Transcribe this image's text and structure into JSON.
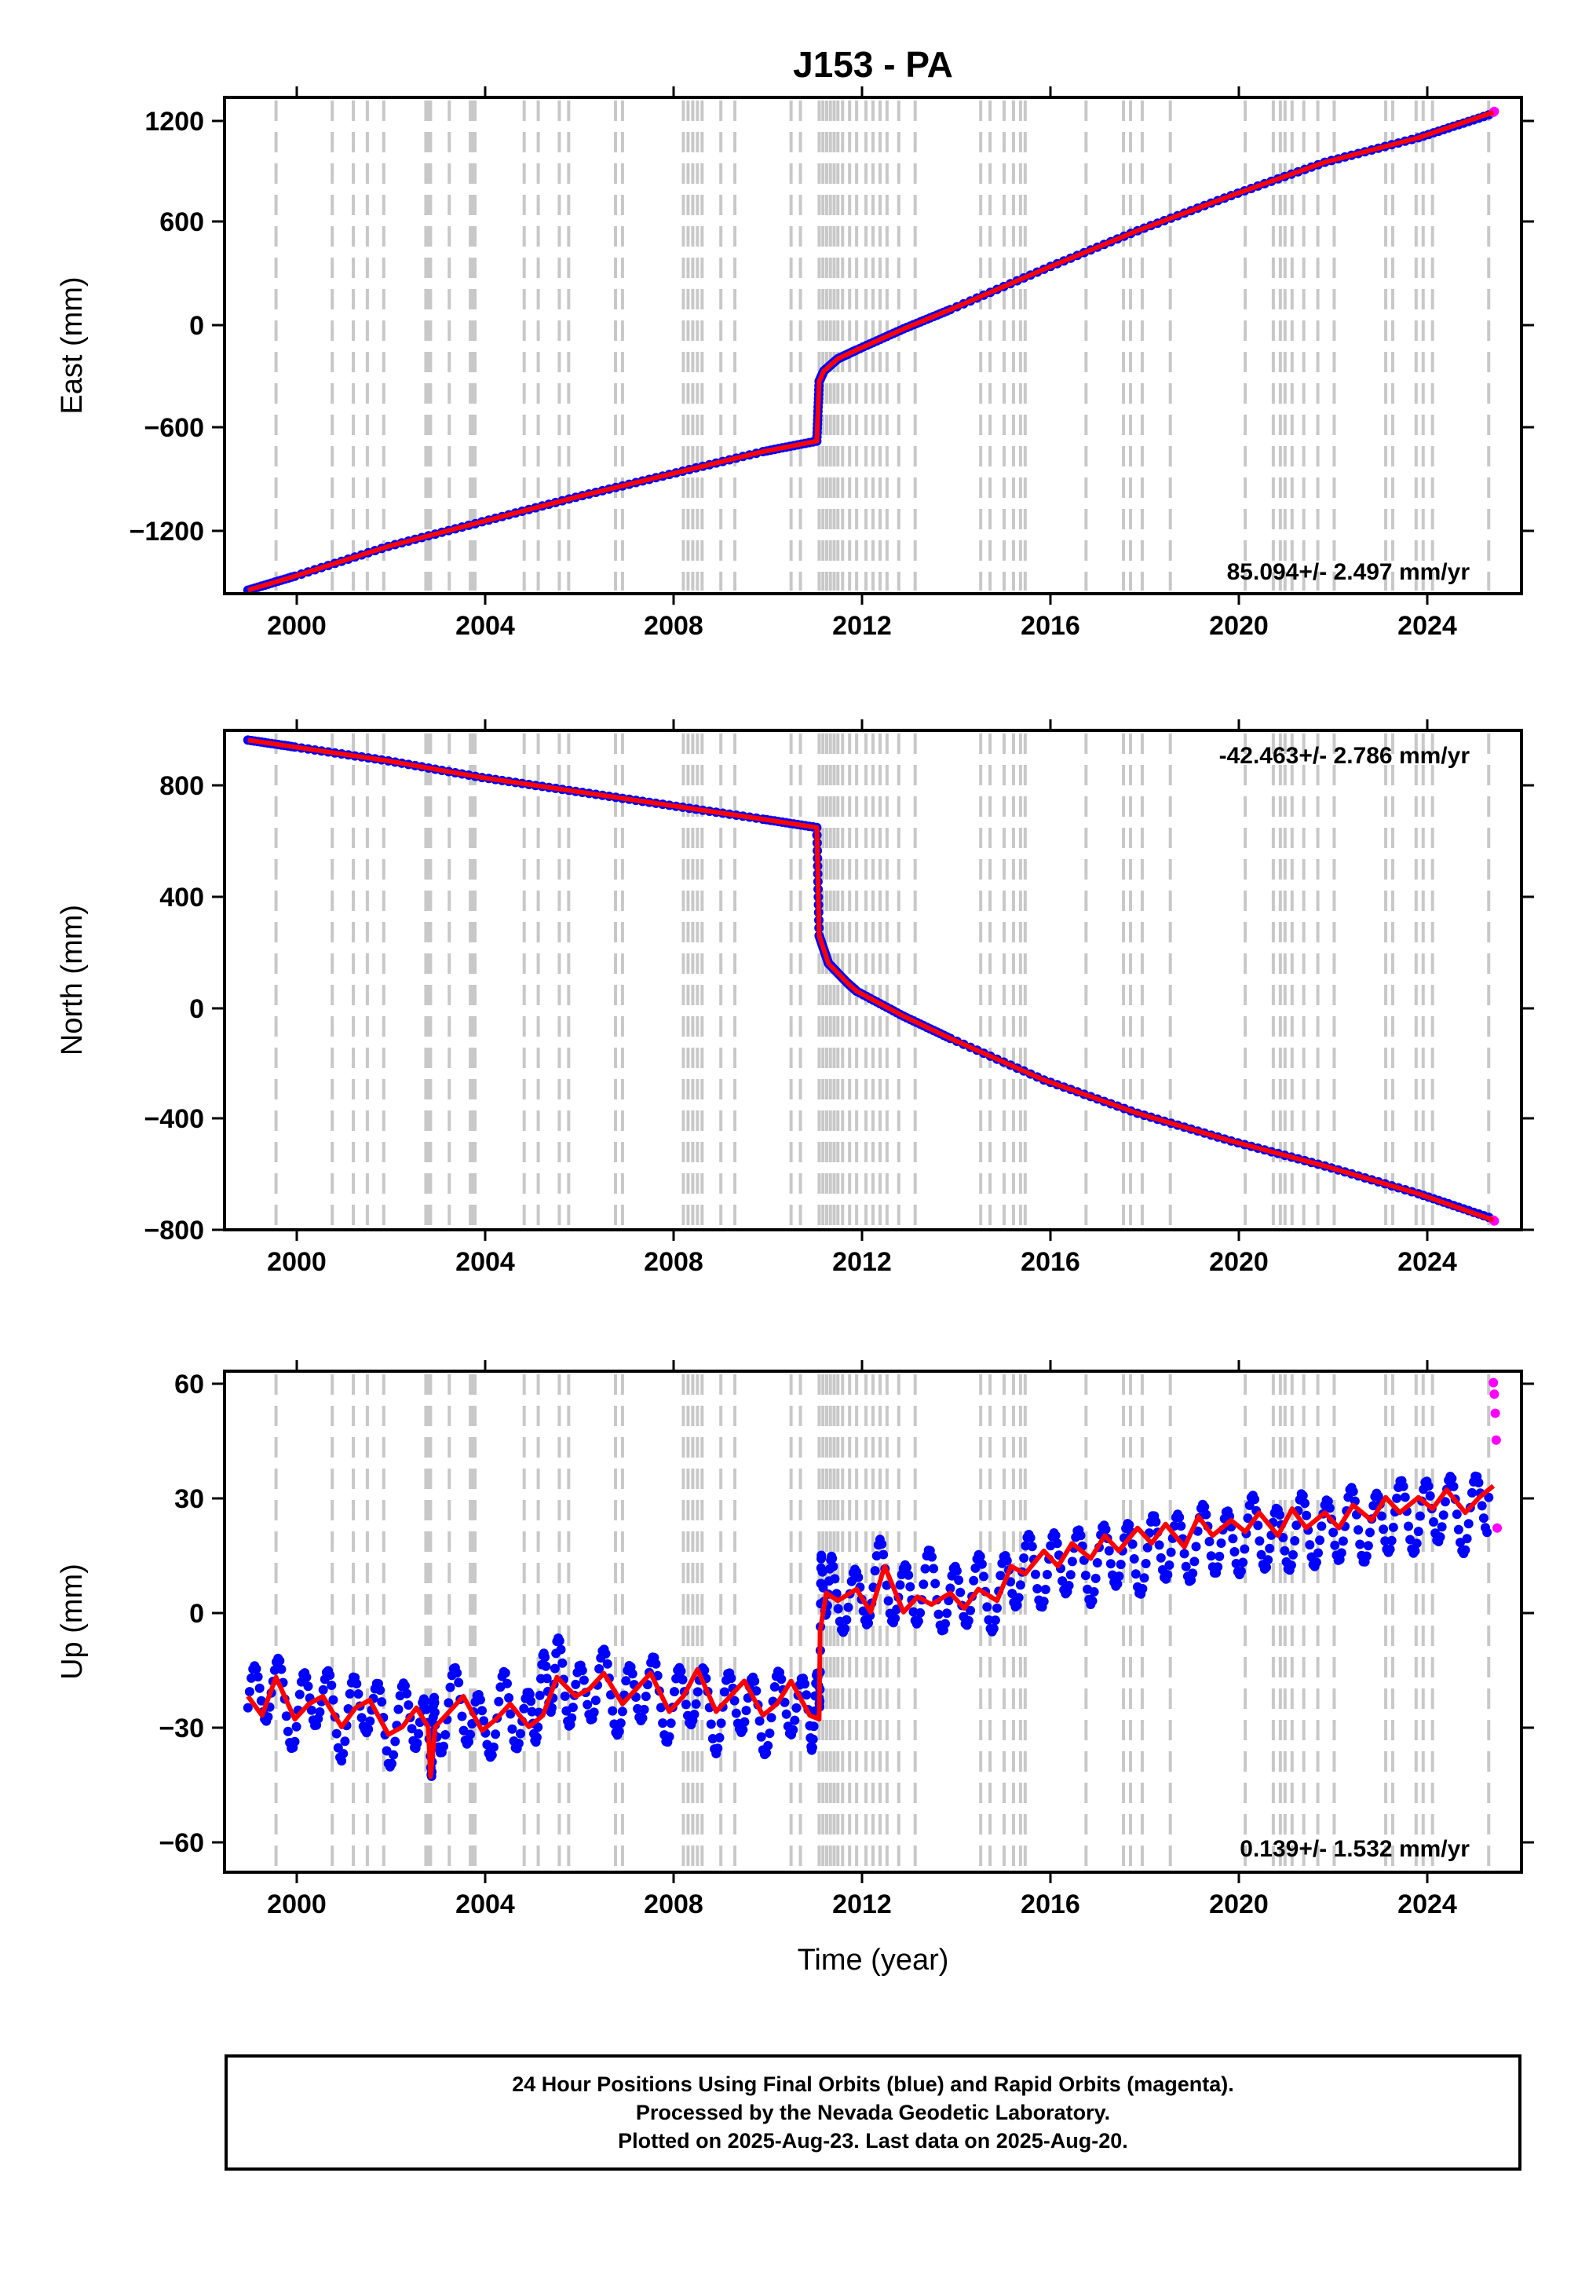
{
  "title": "J153 - PA",
  "colors": {
    "final_orbits": "#0000ff",
    "rapid_orbits": "#ff00ff",
    "model_fit": "#ff0000",
    "event_lines": "#c8c8c8",
    "axes": "#000000"
  },
  "xaxis": {
    "label": "Time (year)",
    "range": [
      1998.5,
      2026.2
    ],
    "ticks": [
      "2000",
      "2004",
      "2008",
      "2012",
      "2016",
      "2020",
      "2024"
    ]
  },
  "event_lines_years": [
    1999.6,
    2000.8,
    2001.25,
    2001.55,
    2001.9,
    2002.8,
    2002.85,
    2002.9,
    2003.3,
    2003.75,
    2003.8,
    2003.85,
    2004.9,
    2005.2,
    2005.65,
    2005.85,
    2006.85,
    2007.0,
    2008.3,
    2008.4,
    2008.5,
    2008.6,
    2008.7,
    2009.1,
    2009.4,
    2010.6,
    2010.8,
    2011.2,
    2011.28,
    2011.36,
    2011.44,
    2011.52,
    2011.6,
    2011.7,
    2011.85,
    2012.0,
    2012.2,
    2012.35,
    2012.5,
    2012.65,
    2012.9,
    2013.25,
    2014.65,
    2014.85,
    2015.15,
    2015.35,
    2015.5,
    2015.6,
    2016.9,
    2017.7,
    2017.85,
    2018.1,
    2018.7,
    2020.3,
    2020.9,
    2021.05,
    2021.15,
    2021.3,
    2021.55,
    2021.85,
    2022.2,
    2023.3,
    2023.45,
    2023.95,
    2024.1,
    2024.3,
    2025.5
  ],
  "chart_data": [
    {
      "type": "scatter",
      "ylabel": "East (mm)",
      "ylim": [
        -1470,
        1360
      ],
      "yticks": [
        "1200",
        "600",
        "0",
        "-600",
        "-1200"
      ],
      "rate_label": "85.094+/- 2.497 mm/yr",
      "grid": false,
      "series": [
        {
          "role": "final_orbits",
          "x": [
            1999.0,
            2000.0,
            2002.0,
            2004.0,
            2006.0,
            2008.0,
            2010.0,
            2011.15,
            2011.2,
            2011.3,
            2011.6,
            2012.0,
            2013.0,
            2014.0,
            2016.0,
            2018.0,
            2020.0,
            2022.0,
            2024.0,
            2025.5
          ],
          "y": [
            -1450,
            -1370,
            -1200,
            -1060,
            -920,
            -790,
            -660,
            -600,
            -260,
            -200,
            -130,
            -80,
            40,
            150,
            380,
            600,
            800,
            990,
            1130,
            1260
          ]
        },
        {
          "role": "rapid_orbits",
          "x": [
            2025.6,
            2025.62
          ],
          "y": [
            1275,
            1280
          ]
        },
        {
          "role": "model_fit",
          "x": [
            1999.0,
            2000.0,
            2002.0,
            2004.0,
            2006.0,
            2008.0,
            2010.0,
            2011.15,
            2011.2,
            2011.3,
            2011.6,
            2012.0,
            2013.0,
            2014.0,
            2016.0,
            2018.0,
            2020.0,
            2022.0,
            2024.0,
            2025.6
          ],
          "y": [
            -1450,
            -1370,
            -1200,
            -1060,
            -920,
            -790,
            -660,
            -600,
            -260,
            -200,
            -130,
            -80,
            40,
            150,
            380,
            600,
            800,
            990,
            1130,
            1275
          ]
        }
      ]
    },
    {
      "type": "scatter",
      "ylabel": "North (mm)",
      "ylim": [
        -800,
        1000
      ],
      "yticks": [
        "800",
        "400",
        "0",
        "-400",
        "-800"
      ],
      "rate_label": "-42.463+/- 2.786 mm/yr",
      "grid": false,
      "series": [
        {
          "role": "final_orbits",
          "x": [
            1999.0,
            2000.0,
            2002.0,
            2004.0,
            2006.0,
            2008.0,
            2010.0,
            2011.15,
            2011.2,
            2011.4,
            2011.8,
            2012.0,
            2013.0,
            2014.0,
            2016.0,
            2018.0,
            2020.0,
            2022.0,
            2024.0,
            2025.5
          ],
          "y": [
            965,
            940,
            890,
            830,
            780,
            730,
            680,
            650,
            260,
            160,
            90,
            60,
            -30,
            -110,
            -260,
            -380,
            -480,
            -570,
            -670,
            -755
          ]
        },
        {
          "role": "rapid_orbits",
          "x": [
            2025.6,
            2025.62
          ],
          "y": [
            -765,
            -768
          ]
        },
        {
          "role": "model_fit",
          "x": [
            1999.0,
            2000.0,
            2002.0,
            2004.0,
            2006.0,
            2008.0,
            2010.0,
            2011.15,
            2011.2,
            2011.4,
            2011.8,
            2012.0,
            2013.0,
            2014.0,
            2016.0,
            2018.0,
            2020.0,
            2022.0,
            2024.0,
            2025.6
          ],
          "y": [
            965,
            940,
            890,
            830,
            780,
            730,
            680,
            650,
            260,
            160,
            90,
            60,
            -30,
            -110,
            -260,
            -380,
            -480,
            -570,
            -670,
            -765
          ]
        }
      ]
    },
    {
      "type": "scatter",
      "ylabel": "Up (mm)",
      "ylim": [
        -68,
        63
      ],
      "yticks": [
        "60",
        "30",
        "0",
        "-30",
        "-60"
      ],
      "rate_label": "0.139+/- 1.532 mm/yr",
      "grid": false,
      "series": [
        {
          "role": "final_orbits",
          "x": [
            1999.0,
            1999.5,
            2000.0,
            2000.5,
            2001.0,
            2001.5,
            2002.0,
            2002.5,
            2002.9,
            2003.0,
            2003.5,
            2004.0,
            2004.5,
            2005.0,
            2005.3,
            2005.6,
            2006.0,
            2006.5,
            2007.0,
            2007.5,
            2008.0,
            2008.5,
            2009.0,
            2009.5,
            2010.0,
            2010.5,
            2011.0,
            2011.2,
            2011.25,
            2011.5,
            2012.0,
            2012.5,
            2013.0,
            2013.5,
            2014.0,
            2014.5,
            2015.0,
            2015.5,
            2016.0,
            2016.5,
            2017.0,
            2017.5,
            2018.0,
            2018.5,
            2019.0,
            2019.5,
            2020.0,
            2020.5,
            2021.0,
            2021.5,
            2022.0,
            2022.5,
            2023.0,
            2023.5,
            2024.0,
            2024.5,
            2025.0,
            2025.5
          ],
          "y": [
            -25,
            -18,
            -28,
            -20,
            -30,
            -22,
            -32,
            -25,
            -35,
            -30,
            -22,
            -32,
            -24,
            -30,
            -20,
            -15,
            -24,
            -17,
            -25,
            -18,
            -26,
            -20,
            -28,
            -22,
            -29,
            -22,
            -28,
            -24,
            10,
            5,
            2,
            10,
            3,
            8,
            2,
            7,
            3,
            12,
            10,
            14,
            11,
            16,
            13,
            18,
            16,
            20,
            17,
            22,
            18,
            22,
            20,
            24,
            21,
            26,
            24,
            28,
            24,
            30
          ]
        },
        {
          "role": "rapid_orbits",
          "x": [
            2025.6,
            2025.62,
            2025.64,
            2025.66,
            2025.68
          ],
          "y": [
            60,
            57,
            52,
            45,
            22
          ]
        },
        {
          "role": "model_fit",
          "x": [
            1999.0,
            1999.3,
            1999.6,
            2000.0,
            2000.3,
            2000.6,
            2001.0,
            2001.3,
            2001.6,
            2002.0,
            2002.3,
            2002.6,
            2002.85,
            2002.9,
            2003.0,
            2003.3,
            2003.6,
            2004.0,
            2004.3,
            2004.6,
            2005.0,
            2005.3,
            2005.6,
            2006.0,
            2006.3,
            2006.6,
            2007.0,
            2007.3,
            2007.6,
            2008.0,
            2008.3,
            2008.6,
            2009.0,
            2009.3,
            2009.6,
            2010.0,
            2010.3,
            2010.6,
            2011.0,
            2011.2,
            2011.22,
            2011.35,
            2011.6,
            2012.0,
            2012.3,
            2012.6,
            2013.0,
            2013.3,
            2013.6,
            2014.0,
            2014.3,
            2014.6,
            2015.0,
            2015.3,
            2015.6,
            2016.0,
            2016.3,
            2016.6,
            2017.0,
            2017.3,
            2017.6,
            2018.0,
            2018.3,
            2018.6,
            2019.0,
            2019.3,
            2019.6,
            2020.0,
            2020.3,
            2020.6,
            2021.0,
            2021.3,
            2021.6,
            2022.0,
            2022.3,
            2022.6,
            2023.0,
            2023.3,
            2023.6,
            2024.0,
            2024.3,
            2024.6,
            2025.0,
            2025.3,
            2025.6
          ],
          "y": [
            -22,
            -27,
            -17,
            -28,
            -24,
            -22,
            -30,
            -25,
            -23,
            -32,
            -30,
            -25,
            -30,
            -43,
            -30,
            -26,
            -22,
            -31,
            -28,
            -24,
            -30,
            -27,
            -17,
            -22,
            -20,
            -16,
            -24,
            -20,
            -16,
            -26,
            -22,
            -15,
            -26,
            -22,
            -18,
            -27,
            -24,
            -18,
            -27,
            -28,
            -5,
            5,
            3,
            6,
            0,
            12,
            0,
            4,
            2,
            5,
            1,
            6,
            3,
            12,
            10,
            16,
            12,
            18,
            14,
            20,
            16,
            22,
            18,
            23,
            17,
            25,
            20,
            24,
            21,
            26,
            20,
            27,
            22,
            26,
            22,
            28,
            24,
            30,
            26,
            30,
            27,
            32,
            26,
            30,
            33
          ]
        }
      ]
    }
  ],
  "caption": {
    "lines": [
      "24 Hour Positions Using Final Orbits (blue) and Rapid Orbits (magenta).",
      "Processed by the Nevada Geodetic Laboratory.",
      "Plotted on 2025-Aug-23. Last data on 2025-Aug-20."
    ]
  }
}
